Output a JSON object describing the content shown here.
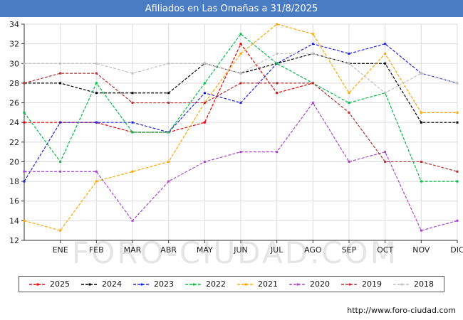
{
  "title": "Afiliados en Las Omañas a 31/8/2025",
  "watermark": "FORO-CIUDAD.COM",
  "footer": {
    "url": "http://www.foro-ciudad.com"
  },
  "colors": {
    "titlebar": "#4a7cc4",
    "grid": "#dcdcdc",
    "axis": "#333333"
  },
  "chart_data": {
    "type": "line",
    "title": "Afiliados en Las Omañas a 31/8/2025",
    "categories": [
      "ENE",
      "FEB",
      "MAR",
      "ABR",
      "MAY",
      "JUN",
      "JUL",
      "AGO",
      "SEP",
      "OCT",
      "NOV",
      "DIC"
    ],
    "x_layout": "each series has a leading point at the left axis edge before ENE, then one point per month tick",
    "ylim": [
      12,
      34
    ],
    "ytick_step": 2,
    "grid": true,
    "legend_position": "bottom",
    "line_style": "dashed",
    "series": [
      {
        "name": "2025",
        "color": "#e60000",
        "values": [
          24,
          24,
          24,
          23,
          23,
          24,
          32,
          27,
          28
        ]
      },
      {
        "name": "2024",
        "color": "#000000",
        "values": [
          28,
          28,
          27,
          27,
          27,
          30,
          29,
          30,
          31,
          30,
          30,
          24,
          24
        ]
      },
      {
        "name": "2023",
        "color": "#2222dd",
        "values": [
          18,
          24,
          24,
          24,
          23,
          27,
          26,
          30,
          32,
          31,
          32,
          29,
          28
        ]
      },
      {
        "name": "2022",
        "color": "#00bb44",
        "values": [
          25,
          20,
          28,
          23,
          23,
          28,
          33,
          30,
          28,
          26,
          27,
          18,
          18
        ]
      },
      {
        "name": "2021",
        "color": "#ffa500",
        "values": [
          14,
          13,
          18,
          19,
          20,
          26,
          31,
          34,
          33,
          27,
          31,
          25,
          25
        ]
      },
      {
        "name": "2020",
        "color": "#aa44cc",
        "values": [
          19,
          19,
          19,
          14,
          18,
          20,
          21,
          21,
          26,
          20,
          21,
          13,
          14
        ]
      },
      {
        "name": "2019",
        "color": "#b03232",
        "values": [
          28,
          29,
          29,
          26,
          26,
          26,
          28,
          28,
          28,
          25,
          20,
          20,
          19
        ]
      },
      {
        "name": "2018",
        "color": "#c0c0c0",
        "values": [
          30,
          30,
          30,
          29,
          30,
          30,
          29,
          31,
          31,
          30,
          27,
          29,
          28
        ]
      }
    ]
  }
}
